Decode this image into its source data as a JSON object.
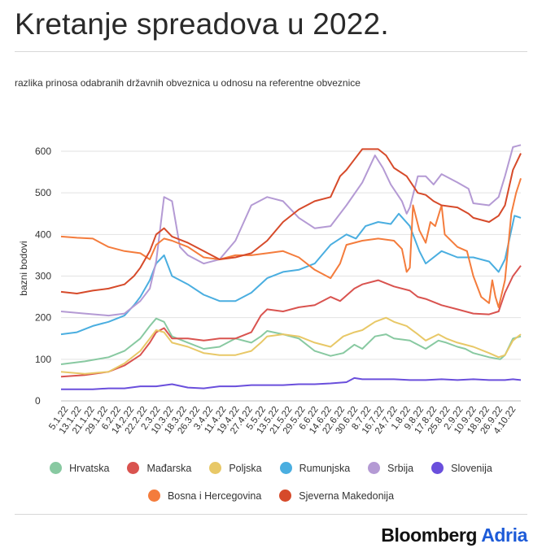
{
  "title": "Kretanje spreadova u 2022.",
  "subtitle": "razlika prinosa odabranih državnih obveznica u odnosu na referentne obveznice",
  "brand": {
    "part1": "Bloomberg",
    "part2": "Adria"
  },
  "chart_data": {
    "type": "line",
    "title": "Kretanje spreadova u 2022.",
    "ylabel": "bazni bodovi",
    "xlabel": "",
    "ylim": [
      0,
      620
    ],
    "yticks": [
      0,
      100,
      200,
      300,
      400,
      500,
      600
    ],
    "xlim": [
      0,
      29
    ],
    "grid": true,
    "legend_position": "bottom",
    "categories": [
      "5.1.22",
      "13.1.22",
      "21.1.22",
      "29.1.22",
      "6.2.22",
      "14.2.22",
      "22.2.22",
      "2.3.22",
      "10.3.22",
      "18.3.22",
      "26.3.22",
      "3.4.22",
      "11.4.22",
      "19.4.22",
      "27.4.22",
      "5.5.22",
      "13.5.22",
      "21.5.22",
      "29.5.22",
      "6.6.22",
      "14.6.22",
      "22.6.22",
      "30.6.22",
      "8.7.22",
      "16.7.22",
      "24.7.22",
      "1.8.22",
      "9.8.22",
      "17.8.22",
      "25.8.22",
      "2.9.22",
      "10.9.22",
      "18.9.22",
      "26.9.22",
      "4.10.22"
    ],
    "series": [
      {
        "name": "Hrvatska",
        "color": "#88c9a1",
        "points": [
          [
            0,
            88
          ],
          [
            1.5,
            95
          ],
          [
            3,
            105
          ],
          [
            4,
            120
          ],
          [
            5,
            150
          ],
          [
            5.6,
            180
          ],
          [
            6,
            198
          ],
          [
            6.5,
            190
          ],
          [
            7,
            155
          ],
          [
            8,
            140
          ],
          [
            9,
            125
          ],
          [
            10,
            130
          ],
          [
            11,
            150
          ],
          [
            12,
            140
          ],
          [
            12.6,
            155
          ],
          [
            13,
            168
          ],
          [
            14,
            160
          ],
          [
            15,
            150
          ],
          [
            16,
            120
          ],
          [
            17,
            108
          ],
          [
            17.8,
            115
          ],
          [
            18.5,
            135
          ],
          [
            19,
            125
          ],
          [
            19.8,
            155
          ],
          [
            20.5,
            160
          ],
          [
            21,
            150
          ],
          [
            22,
            145
          ],
          [
            22.5,
            135
          ],
          [
            23,
            125
          ],
          [
            23.8,
            145
          ],
          [
            24.3,
            140
          ],
          [
            25,
            130
          ],
          [
            25.5,
            125
          ],
          [
            26,
            115
          ],
          [
            27,
            105
          ],
          [
            27.7,
            100
          ],
          [
            28,
            110
          ],
          [
            28.5,
            150
          ],
          [
            29,
            155
          ]
        ]
      },
      {
        "name": "Mađarska",
        "color": "#d9534f",
        "points": [
          [
            0,
            58
          ],
          [
            1.5,
            62
          ],
          [
            3,
            70
          ],
          [
            4,
            85
          ],
          [
            5,
            110
          ],
          [
            5.6,
            140
          ],
          [
            6,
            165
          ],
          [
            6.5,
            175
          ],
          [
            7,
            150
          ],
          [
            8,
            150
          ],
          [
            9,
            145
          ],
          [
            10,
            150
          ],
          [
            11,
            150
          ],
          [
            12,
            165
          ],
          [
            12.6,
            205
          ],
          [
            13,
            220
          ],
          [
            14,
            215
          ],
          [
            15,
            225
          ],
          [
            16,
            230
          ],
          [
            17,
            250
          ],
          [
            17.6,
            240
          ],
          [
            18.5,
            270
          ],
          [
            19,
            280
          ],
          [
            20,
            290
          ],
          [
            21,
            275
          ],
          [
            22,
            265
          ],
          [
            22.5,
            250
          ],
          [
            23,
            245
          ],
          [
            24,
            230
          ],
          [
            25,
            220
          ],
          [
            26,
            210
          ],
          [
            27,
            208
          ],
          [
            27.6,
            215
          ],
          [
            28,
            260
          ],
          [
            28.5,
            300
          ],
          [
            29,
            325
          ]
        ]
      },
      {
        "name": "Poljska",
        "color": "#e8c867",
        "points": [
          [
            0,
            70
          ],
          [
            1.5,
            65
          ],
          [
            3,
            70
          ],
          [
            4,
            90
          ],
          [
            5,
            120
          ],
          [
            5.6,
            150
          ],
          [
            6,
            170
          ],
          [
            6.5,
            165
          ],
          [
            7,
            140
          ],
          [
            8,
            130
          ],
          [
            9,
            115
          ],
          [
            10,
            110
          ],
          [
            11,
            110
          ],
          [
            12,
            120
          ],
          [
            12.6,
            140
          ],
          [
            13,
            155
          ],
          [
            14,
            160
          ],
          [
            15,
            155
          ],
          [
            16,
            140
          ],
          [
            17,
            130
          ],
          [
            17.8,
            155
          ],
          [
            18.5,
            165
          ],
          [
            19,
            170
          ],
          [
            19.8,
            190
          ],
          [
            20.5,
            200
          ],
          [
            21,
            190
          ],
          [
            21.8,
            180
          ],
          [
            22.5,
            160
          ],
          [
            23,
            145
          ],
          [
            23.8,
            160
          ],
          [
            24.3,
            150
          ],
          [
            25,
            140
          ],
          [
            26,
            130
          ],
          [
            27,
            115
          ],
          [
            27.6,
            105
          ],
          [
            28,
            110
          ],
          [
            28.5,
            145
          ],
          [
            29,
            160
          ]
        ]
      },
      {
        "name": "Rumunjska",
        "color": "#4aaee0",
        "points": [
          [
            0,
            160
          ],
          [
            1,
            165
          ],
          [
            2,
            180
          ],
          [
            3,
            190
          ],
          [
            4,
            205
          ],
          [
            4.6,
            230
          ],
          [
            5,
            250
          ],
          [
            5.6,
            290
          ],
          [
            6,
            330
          ],
          [
            6.5,
            350
          ],
          [
            7,
            300
          ],
          [
            8,
            280
          ],
          [
            9,
            255
          ],
          [
            10,
            240
          ],
          [
            11,
            240
          ],
          [
            12,
            260
          ],
          [
            13,
            295
          ],
          [
            14,
            310
          ],
          [
            15,
            315
          ],
          [
            16,
            330
          ],
          [
            17,
            375
          ],
          [
            18,
            400
          ],
          [
            18.6,
            390
          ],
          [
            19.2,
            420
          ],
          [
            20,
            430
          ],
          [
            20.8,
            425
          ],
          [
            21.3,
            450
          ],
          [
            22,
            420
          ],
          [
            22.6,
            360
          ],
          [
            23,
            330
          ],
          [
            24,
            360
          ],
          [
            25,
            345
          ],
          [
            26,
            345
          ],
          [
            27,
            335
          ],
          [
            27.6,
            310
          ],
          [
            28,
            340
          ],
          [
            28.6,
            445
          ],
          [
            29,
            440
          ]
        ]
      },
      {
        "name": "Srbija",
        "color": "#b49ad4",
        "points": [
          [
            0,
            215
          ],
          [
            1.5,
            210
          ],
          [
            3,
            205
          ],
          [
            4,
            210
          ],
          [
            5,
            240
          ],
          [
            5.6,
            270
          ],
          [
            6,
            335
          ],
          [
            6.5,
            490
          ],
          [
            7,
            480
          ],
          [
            7.5,
            370
          ],
          [
            8,
            350
          ],
          [
            9,
            330
          ],
          [
            10,
            340
          ],
          [
            11,
            385
          ],
          [
            12,
            470
          ],
          [
            13,
            490
          ],
          [
            14,
            480
          ],
          [
            15,
            440
          ],
          [
            16,
            415
          ],
          [
            17,
            420
          ],
          [
            18,
            470
          ],
          [
            19,
            525
          ],
          [
            19.8,
            590
          ],
          [
            20.3,
            560
          ],
          [
            20.8,
            520
          ],
          [
            21.5,
            480
          ],
          [
            21.8,
            450
          ],
          [
            22,
            465
          ],
          [
            22.5,
            540
          ],
          [
            23,
            540
          ],
          [
            23.5,
            520
          ],
          [
            24,
            545
          ],
          [
            25,
            525
          ],
          [
            25.7,
            510
          ],
          [
            26,
            475
          ],
          [
            27,
            470
          ],
          [
            27.6,
            490
          ],
          [
            28,
            540
          ],
          [
            28.5,
            610
          ],
          [
            29,
            615
          ]
        ]
      },
      {
        "name": "Slovenija",
        "color": "#6a4fdc",
        "points": [
          [
            0,
            28
          ],
          [
            2,
            28
          ],
          [
            3,
            30
          ],
          [
            4,
            30
          ],
          [
            5,
            35
          ],
          [
            6,
            35
          ],
          [
            7,
            40
          ],
          [
            8,
            32
          ],
          [
            9,
            30
          ],
          [
            10,
            35
          ],
          [
            11,
            35
          ],
          [
            12,
            38
          ],
          [
            13,
            38
          ],
          [
            14,
            38
          ],
          [
            15,
            40
          ],
          [
            16,
            40
          ],
          [
            17,
            42
          ],
          [
            18,
            45
          ],
          [
            18.5,
            55
          ],
          [
            19,
            52
          ],
          [
            20,
            52
          ],
          [
            21,
            52
          ],
          [
            22,
            50
          ],
          [
            23,
            50
          ],
          [
            24,
            52
          ],
          [
            25,
            50
          ],
          [
            26,
            52
          ],
          [
            27,
            50
          ],
          [
            28,
            50
          ],
          [
            28.5,
            52
          ],
          [
            29,
            50
          ]
        ]
      },
      {
        "name": "Bosna i Hercegovina",
        "color": "#f47c3c",
        "points": [
          [
            0,
            395
          ],
          [
            1,
            392
          ],
          [
            2,
            390
          ],
          [
            2.5,
            380
          ],
          [
            3,
            370
          ],
          [
            4,
            360
          ],
          [
            5,
            355
          ],
          [
            5.6,
            340
          ],
          [
            6,
            375
          ],
          [
            6.5,
            390
          ],
          [
            7,
            385
          ],
          [
            8,
            370
          ],
          [
            9,
            345
          ],
          [
            10,
            340
          ],
          [
            11,
            350
          ],
          [
            12,
            350
          ],
          [
            13,
            355
          ],
          [
            14,
            360
          ],
          [
            15,
            345
          ],
          [
            16,
            315
          ],
          [
            17,
            295
          ],
          [
            17.6,
            330
          ],
          [
            18,
            375
          ],
          [
            19,
            385
          ],
          [
            20,
            390
          ],
          [
            21,
            385
          ],
          [
            21.5,
            365
          ],
          [
            21.8,
            310
          ],
          [
            22,
            320
          ],
          [
            22.2,
            470
          ],
          [
            22.6,
            410
          ],
          [
            23,
            380
          ],
          [
            23.3,
            430
          ],
          [
            23.6,
            420
          ],
          [
            24,
            470
          ],
          [
            24.2,
            400
          ],
          [
            25,
            370
          ],
          [
            25.6,
            360
          ],
          [
            26,
            300
          ],
          [
            26.5,
            250
          ],
          [
            27,
            235
          ],
          [
            27.2,
            290
          ],
          [
            27.4,
            250
          ],
          [
            27.6,
            225
          ],
          [
            28,
            290
          ],
          [
            28.4,
            450
          ],
          [
            28.7,
            500
          ],
          [
            29,
            535
          ]
        ]
      },
      {
        "name": "Sjeverna Makedonija",
        "color": "#d64a2a",
        "points": [
          [
            0,
            262
          ],
          [
            1,
            258
          ],
          [
            2,
            265
          ],
          [
            3,
            270
          ],
          [
            4,
            280
          ],
          [
            4.6,
            300
          ],
          [
            5,
            320
          ],
          [
            5.6,
            360
          ],
          [
            6,
            400
          ],
          [
            6.5,
            415
          ],
          [
            7,
            395
          ],
          [
            8,
            380
          ],
          [
            9,
            360
          ],
          [
            10,
            340
          ],
          [
            11,
            345
          ],
          [
            12,
            355
          ],
          [
            13,
            385
          ],
          [
            14,
            430
          ],
          [
            15,
            460
          ],
          [
            16,
            480
          ],
          [
            17,
            490
          ],
          [
            17.6,
            540
          ],
          [
            18,
            555
          ],
          [
            18.5,
            580
          ],
          [
            19,
            605
          ],
          [
            20,
            605
          ],
          [
            20.5,
            590
          ],
          [
            21,
            560
          ],
          [
            21.8,
            540
          ],
          [
            22.5,
            500
          ],
          [
            23,
            495
          ],
          [
            23.5,
            480
          ],
          [
            24,
            470
          ],
          [
            25,
            465
          ],
          [
            25.7,
            450
          ],
          [
            26,
            440
          ],
          [
            27,
            430
          ],
          [
            27.6,
            445
          ],
          [
            28,
            470
          ],
          [
            28.5,
            555
          ],
          [
            29,
            595
          ]
        ]
      }
    ]
  }
}
